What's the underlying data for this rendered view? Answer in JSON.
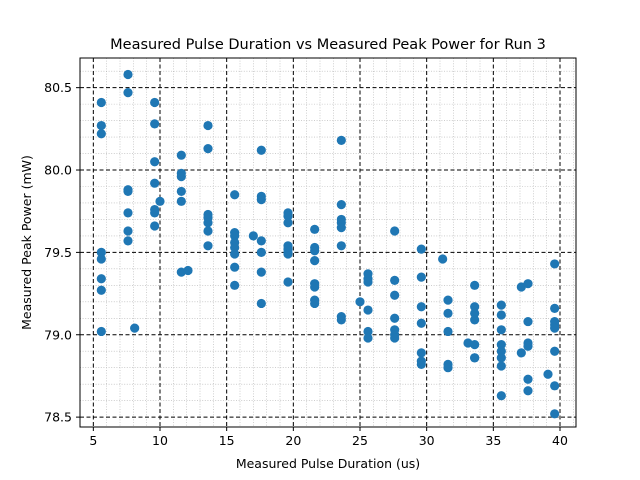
{
  "chart_data": {
    "type": "scatter",
    "title": "Measured Pulse Duration vs Measured Peak Power for Run 3",
    "xlabel": "Measured Pulse Duration (us)",
    "ylabel": "Measured Peak Power (mW)",
    "xlim": [
      4.0,
      41.2
    ],
    "ylim": [
      78.44,
      80.68
    ],
    "xticks": [
      5,
      10,
      15,
      20,
      25,
      30,
      35,
      40
    ],
    "xtick_labels": [
      "5",
      "10",
      "15",
      "20",
      "25",
      "30",
      "35",
      "40"
    ],
    "yticks": [
      78.5,
      79.0,
      79.5,
      80.0,
      80.5
    ],
    "ytick_labels": [
      "78.5",
      "79.0",
      "79.5",
      "80.0",
      "80.5"
    ],
    "grid": {
      "major": true,
      "minor": true
    },
    "marker_color": "#1f77b4",
    "points": [
      [
        5.6,
        80.41
      ],
      [
        5.6,
        80.27
      ],
      [
        5.6,
        80.22
      ],
      [
        5.6,
        79.5
      ],
      [
        5.6,
        79.46
      ],
      [
        5.6,
        79.34
      ],
      [
        5.6,
        79.27
      ],
      [
        5.6,
        79.02
      ],
      [
        7.6,
        80.58
      ],
      [
        7.6,
        80.47
      ],
      [
        7.6,
        79.88
      ],
      [
        7.6,
        79.87
      ],
      [
        7.6,
        79.74
      ],
      [
        7.6,
        79.63
      ],
      [
        7.6,
        79.57
      ],
      [
        8.1,
        79.04
      ],
      [
        9.6,
        80.41
      ],
      [
        9.6,
        80.28
      ],
      [
        9.6,
        80.05
      ],
      [
        9.6,
        79.92
      ],
      [
        9.6,
        79.76
      ],
      [
        9.6,
        79.74
      ],
      [
        9.6,
        79.66
      ],
      [
        10.0,
        79.81
      ],
      [
        11.6,
        80.09
      ],
      [
        11.6,
        79.98
      ],
      [
        11.6,
        79.96
      ],
      [
        11.6,
        79.87
      ],
      [
        11.6,
        79.81
      ],
      [
        11.6,
        79.38
      ],
      [
        12.1,
        79.39
      ],
      [
        13.6,
        80.27
      ],
      [
        13.6,
        80.13
      ],
      [
        13.6,
        79.73
      ],
      [
        13.6,
        79.71
      ],
      [
        13.6,
        79.68
      ],
      [
        13.6,
        79.63
      ],
      [
        13.6,
        79.54
      ],
      [
        15.6,
        79.85
      ],
      [
        15.6,
        79.62
      ],
      [
        15.6,
        79.6
      ],
      [
        15.6,
        79.56
      ],
      [
        15.6,
        79.53
      ],
      [
        15.6,
        79.49
      ],
      [
        15.6,
        79.41
      ],
      [
        15.6,
        79.3
      ],
      [
        17.0,
        79.6
      ],
      [
        17.6,
        80.12
      ],
      [
        17.6,
        79.84
      ],
      [
        17.6,
        79.82
      ],
      [
        17.6,
        79.57
      ],
      [
        17.6,
        79.5
      ],
      [
        17.6,
        79.38
      ],
      [
        17.6,
        79.19
      ],
      [
        19.6,
        79.74
      ],
      [
        19.6,
        79.72
      ],
      [
        19.6,
        79.68
      ],
      [
        19.6,
        79.54
      ],
      [
        19.6,
        79.52
      ],
      [
        19.6,
        79.5
      ],
      [
        19.6,
        79.49
      ],
      [
        19.6,
        79.32
      ],
      [
        21.6,
        79.64
      ],
      [
        21.6,
        79.53
      ],
      [
        21.6,
        79.51
      ],
      [
        21.6,
        79.45
      ],
      [
        21.6,
        79.31
      ],
      [
        21.6,
        79.29
      ],
      [
        21.6,
        79.21
      ],
      [
        21.6,
        79.19
      ],
      [
        23.6,
        80.18
      ],
      [
        23.6,
        79.79
      ],
      [
        23.6,
        79.7
      ],
      [
        23.6,
        79.68
      ],
      [
        23.6,
        79.65
      ],
      [
        23.6,
        79.54
      ],
      [
        23.6,
        79.11
      ],
      [
        23.6,
        79.09
      ],
      [
        25.0,
        79.2
      ],
      [
        25.6,
        79.37
      ],
      [
        25.6,
        79.34
      ],
      [
        25.6,
        79.32
      ],
      [
        25.6,
        79.15
      ],
      [
        25.6,
        79.02
      ],
      [
        25.6,
        78.98
      ],
      [
        27.6,
        79.63
      ],
      [
        27.6,
        79.33
      ],
      [
        27.6,
        79.24
      ],
      [
        27.6,
        79.1
      ],
      [
        27.6,
        79.03
      ],
      [
        27.6,
        79.0
      ],
      [
        27.6,
        78.98
      ],
      [
        29.6,
        79.52
      ],
      [
        29.6,
        79.35
      ],
      [
        29.6,
        79.17
      ],
      [
        29.6,
        79.07
      ],
      [
        29.6,
        78.89
      ],
      [
        29.6,
        78.84
      ],
      [
        29.6,
        78.82
      ],
      [
        31.2,
        79.46
      ],
      [
        31.6,
        79.21
      ],
      [
        31.6,
        79.13
      ],
      [
        31.6,
        79.02
      ],
      [
        31.6,
        78.82
      ],
      [
        31.6,
        78.8
      ],
      [
        33.1,
        78.95
      ],
      [
        33.6,
        79.3
      ],
      [
        33.6,
        79.17
      ],
      [
        33.6,
        79.13
      ],
      [
        33.6,
        79.09
      ],
      [
        33.6,
        78.94
      ],
      [
        33.6,
        78.86
      ],
      [
        33.6,
        78.86
      ],
      [
        35.6,
        79.18
      ],
      [
        35.6,
        79.12
      ],
      [
        35.6,
        79.03
      ],
      [
        35.6,
        78.94
      ],
      [
        35.6,
        78.9
      ],
      [
        35.6,
        78.86
      ],
      [
        35.6,
        78.81
      ],
      [
        35.6,
        78.63
      ],
      [
        37.1,
        79.29
      ],
      [
        37.1,
        78.89
      ],
      [
        37.6,
        79.31
      ],
      [
        37.6,
        79.08
      ],
      [
        37.6,
        78.95
      ],
      [
        37.6,
        78.93
      ],
      [
        37.6,
        78.73
      ],
      [
        37.6,
        78.66
      ],
      [
        39.1,
        78.76
      ],
      [
        39.6,
        79.43
      ],
      [
        39.6,
        79.16
      ],
      [
        39.6,
        79.08
      ],
      [
        39.6,
        79.06
      ],
      [
        39.6,
        79.04
      ],
      [
        39.6,
        78.9
      ],
      [
        39.6,
        78.69
      ],
      [
        39.6,
        78.52
      ]
    ]
  }
}
